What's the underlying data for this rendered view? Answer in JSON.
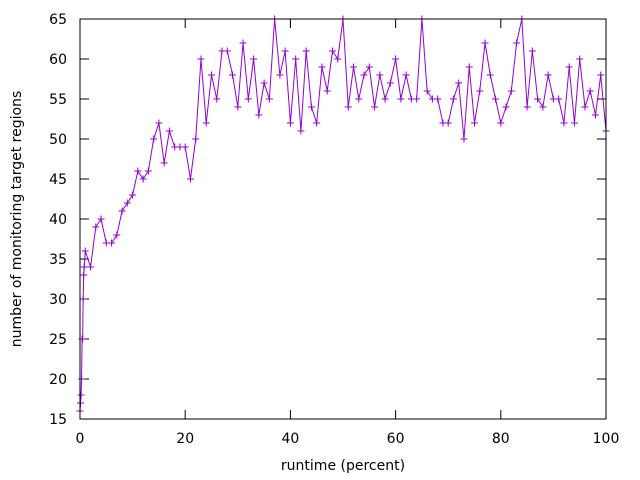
{
  "chart_data": {
    "type": "line",
    "title": "",
    "xlabel": "runtime (percent)",
    "ylabel": "number of monitoring target regions",
    "xlim": [
      0,
      100
    ],
    "ylim": [
      15,
      65
    ],
    "xticks": [
      0,
      20,
      40,
      60,
      80,
      100
    ],
    "yticks": [
      15,
      20,
      25,
      30,
      35,
      40,
      45,
      50,
      55,
      60,
      65
    ],
    "grid": false,
    "legend": "none",
    "line_color": "#9400d3",
    "marker": "plus",
    "x": [
      0,
      0.1,
      0.2,
      0.3,
      0.4,
      0.5,
      0.6,
      0.7,
      0.8,
      1,
      2,
      3,
      4,
      5,
      6,
      7,
      8,
      9,
      10,
      11,
      12,
      13,
      14,
      15,
      16,
      17,
      18,
      19,
      20,
      21,
      22,
      23,
      24,
      25,
      26,
      27,
      28,
      29,
      30,
      31,
      32,
      33,
      34,
      35,
      36,
      37,
      38,
      39,
      40,
      41,
      42,
      43,
      44,
      45,
      46,
      47,
      48,
      49,
      50,
      51,
      52,
      53,
      54,
      55,
      56,
      57,
      58,
      59,
      60,
      61,
      62,
      63,
      64,
      65,
      66,
      67,
      68,
      69,
      70,
      71,
      72,
      73,
      74,
      75,
      76,
      77,
      78,
      79,
      80,
      81,
      82,
      83,
      84,
      85,
      86,
      87,
      88,
      89,
      90,
      91,
      92,
      93,
      94,
      95,
      96,
      97,
      98,
      99,
      100
    ],
    "series": [
      {
        "values": [
          16,
          17,
          18,
          20,
          25,
          25,
          30,
          33,
          34,
          36,
          34,
          39,
          40,
          37,
          37,
          38,
          41,
          42,
          43,
          46,
          45,
          46,
          50,
          52,
          47,
          51,
          49,
          49,
          49,
          45,
          50,
          60,
          52,
          58,
          55,
          61,
          61,
          58,
          54,
          62,
          55,
          60,
          53,
          57,
          55,
          65,
          58,
          61,
          52,
          60,
          51,
          61,
          54,
          52,
          59,
          56,
          61,
          60,
          65,
          54,
          59,
          55,
          58,
          59,
          54,
          58,
          55,
          57,
          60,
          55,
          58,
          55,
          55,
          65,
          56,
          55,
          55,
          52,
          52,
          55,
          57,
          50,
          59,
          52,
          56,
          62,
          58,
          55,
          52,
          54,
          56,
          62,
          65,
          54,
          61,
          55,
          54,
          58,
          55,
          55,
          52,
          59,
          52,
          60,
          54,
          56,
          53,
          58,
          51
        ]
      }
    ]
  }
}
